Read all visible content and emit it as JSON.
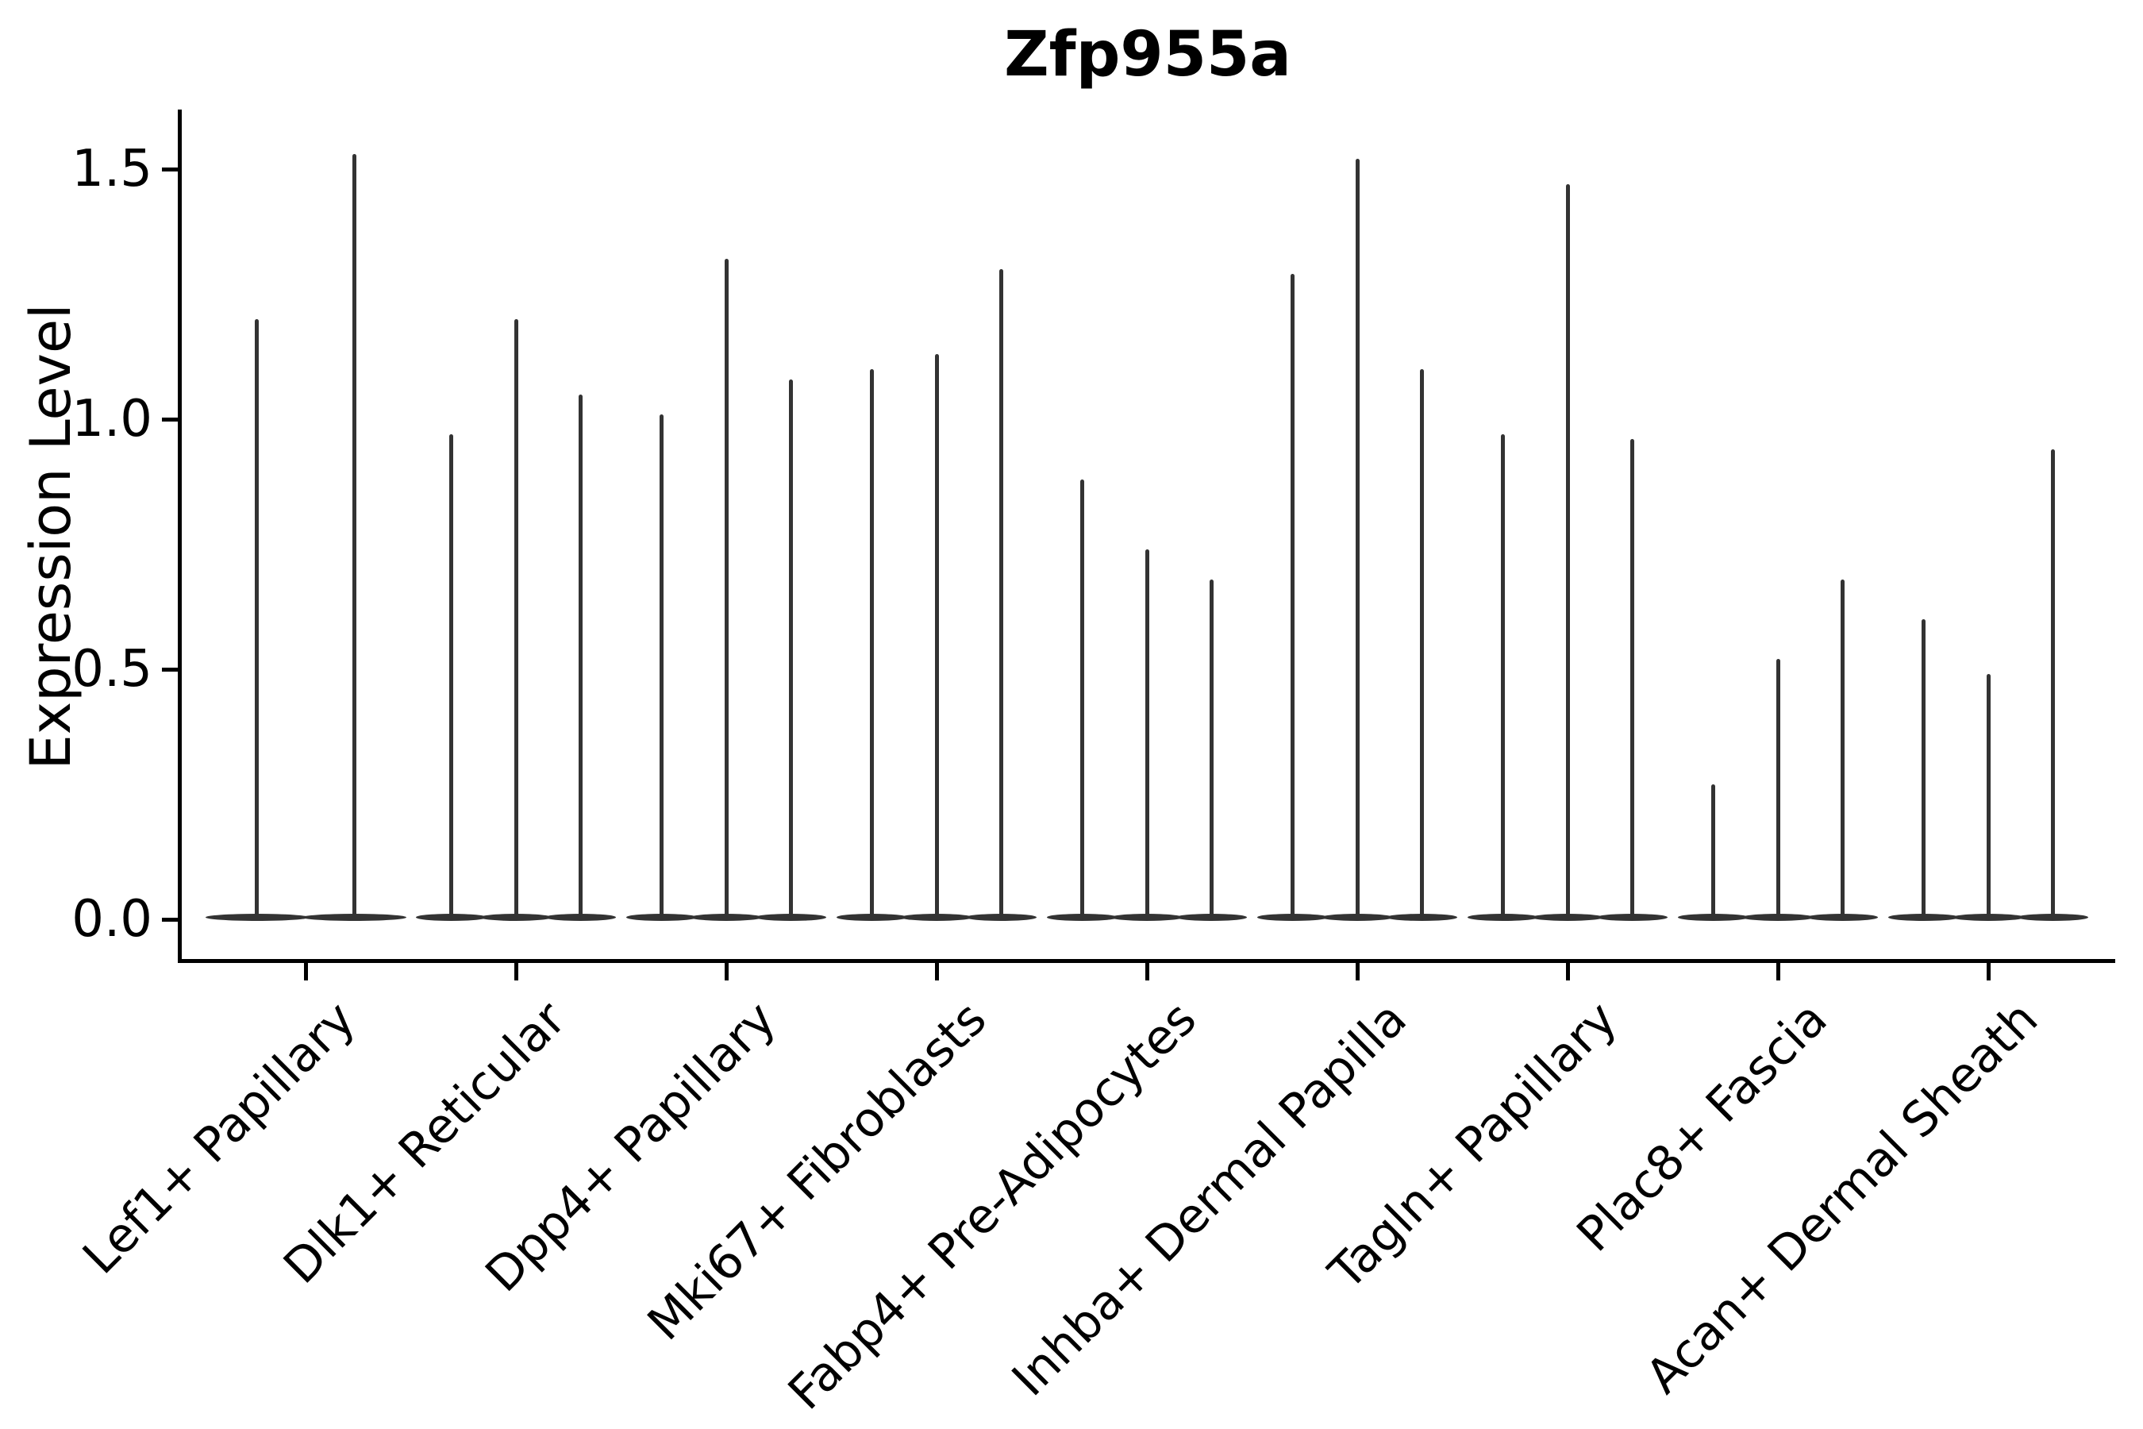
{
  "chart_data": {
    "type": "violin",
    "title": "Zfp955a",
    "ylabel": "Expression Level",
    "xlabel": "",
    "yticks": [
      "0.0",
      "0.5",
      "1.0",
      "1.5"
    ],
    "ytick_values": [
      0.0,
      0.5,
      1.0,
      1.5
    ],
    "ylim": [
      -0.08,
      1.62
    ],
    "grid": false,
    "legend": "none",
    "violin_color": "#333333",
    "axis_color": "#000000",
    "background": "#ffffff",
    "groups": [
      {
        "label": "Lef1+ Papillary",
        "violin_peaks": [
          1.2,
          1.53
        ]
      },
      {
        "label": "Dlk1+ Reticular",
        "violin_peaks": [
          0.97,
          1.2,
          1.05
        ]
      },
      {
        "label": "Dpp4+ Papillary",
        "violin_peaks": [
          1.01,
          1.32,
          1.08
        ]
      },
      {
        "label": "Mki67+ Fibroblasts",
        "violin_peaks": [
          1.1,
          1.13,
          1.3
        ]
      },
      {
        "label": "Fabp4+ Pre-Adipocytes",
        "violin_peaks": [
          0.88,
          0.74,
          0.68
        ]
      },
      {
        "label": "Inhba+ Dermal Papilla",
        "violin_peaks": [
          1.29,
          1.52,
          1.1
        ]
      },
      {
        "label": "Tagln+ Papillary",
        "violin_peaks": [
          0.97,
          1.47,
          0.96
        ]
      },
      {
        "label": "Plac8+ Fascia",
        "violin_peaks": [
          0.27,
          0.52,
          0.68
        ]
      },
      {
        "label": "Acan+ Dermal Sheath",
        "violin_peaks": [
          0.6,
          0.49,
          0.94
        ]
      }
    ]
  }
}
